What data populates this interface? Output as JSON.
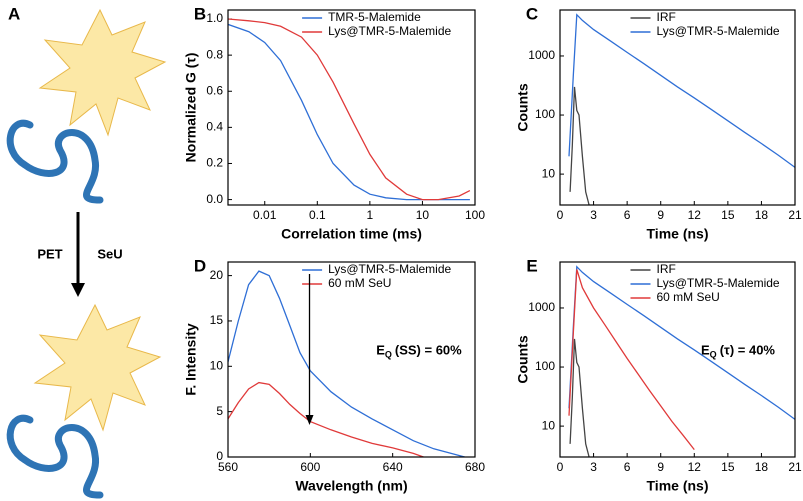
{
  "panel_a": {
    "label": "A",
    "arrow_left": "PET",
    "arrow_right": "SeU"
  },
  "chart_data": [
    {
      "type": "line",
      "panel": "B",
      "xlabel": "Correlation time (ms)",
      "ylabel": "Normalized G (τ)",
      "xscale": "log",
      "xlim": [
        0.002,
        100
      ],
      "xticks": [
        0.01,
        0.1,
        1,
        10,
        100
      ],
      "ylim": [
        -0.03,
        1.05
      ],
      "yticks": [
        {
          "value": 0,
          "label": "0.0"
        },
        0.2,
        0.4,
        0.6,
        0.8,
        {
          "value": 1,
          "label": "1.0"
        }
      ],
      "legend": "upper right",
      "series": [
        {
          "name": "TMR-5-Malemide",
          "color": "#2f6fd6",
          "x": [
            0.002,
            0.005,
            0.01,
            0.02,
            0.05,
            0.1,
            0.2,
            0.5,
            1,
            2,
            5,
            10,
            20,
            50,
            80
          ],
          "values": [
            0.97,
            0.93,
            0.87,
            0.77,
            0.55,
            0.36,
            0.2,
            0.08,
            0.03,
            0.01,
            0,
            0,
            0,
            0,
            0
          ]
        },
        {
          "name": "Lys@TMR-5-Malemide",
          "color": "#e03a3a",
          "x": [
            0.002,
            0.005,
            0.01,
            0.02,
            0.05,
            0.1,
            0.2,
            0.5,
            1,
            2,
            5,
            10,
            20,
            50,
            80
          ],
          "values": [
            1,
            0.99,
            0.98,
            0.96,
            0.9,
            0.8,
            0.65,
            0.42,
            0.25,
            0.12,
            0.03,
            0,
            0,
            0.02,
            0.05
          ]
        }
      ]
    },
    {
      "type": "line",
      "panel": "C",
      "xlabel": "Time (ns)",
      "ylabel": "Counts",
      "yscale": "log",
      "xlim": [
        0,
        21
      ],
      "xticks": [
        0,
        3,
        6,
        9,
        12,
        15,
        18,
        21
      ],
      "ylim": [
        3,
        6000
      ],
      "yticks": [
        10,
        100,
        1000
      ],
      "legend": "upper right",
      "series": [
        {
          "name": "IRF",
          "color": "#444444",
          "x": [
            0.9,
            1.1,
            1.3,
            1.5,
            1.7,
            2.0,
            2.3,
            2.6
          ],
          "values": [
            5,
            30,
            300,
            120,
            100,
            20,
            5,
            3
          ]
        },
        {
          "name": "Lys@TMR-5-Malemide",
          "color": "#2f6fd6",
          "x": [
            0.8,
            1.2,
            1.5,
            2,
            3,
            4.5,
            6,
            7.5,
            9,
            10.5,
            12,
            13.5,
            15,
            16.5,
            18,
            19.5,
            21
          ],
          "values": [
            20,
            500,
            5000,
            4000,
            2800,
            1800,
            1150,
            740,
            470,
            300,
            195,
            125,
            80,
            51,
            33,
            21,
            13
          ]
        }
      ]
    },
    {
      "type": "line",
      "panel": "D",
      "xlabel": "Wavelength (nm)",
      "ylabel": "F. Intensity",
      "xlim": [
        560,
        680
      ],
      "xticks": [
        560,
        600,
        640,
        680
      ],
      "ylim": [
        0,
        21.5
      ],
      "yticks": [
        0,
        5,
        10,
        15,
        20
      ],
      "legend": "upper right",
      "annotation": {
        "main": "E",
        "sub": "Q",
        "rest": "(SS) = 60%"
      },
      "series": [
        {
          "name": "Lys@TMR-5-Malemide",
          "color": "#2f6fd6",
          "x": [
            560,
            565,
            570,
            575,
            580,
            585,
            590,
            595,
            600,
            610,
            620,
            630,
            640,
            650,
            660,
            670,
            675
          ],
          "values": [
            10.5,
            15,
            19,
            20.5,
            20,
            17.5,
            14.5,
            11.5,
            9.5,
            7.2,
            5.5,
            4.2,
            3,
            1.8,
            0.9,
            0.3,
            0
          ]
        },
        {
          "name": "60 mM SeU",
          "color": "#e03a3a",
          "x": [
            560,
            565,
            570,
            575,
            580,
            585,
            590,
            595,
            600,
            610,
            620,
            630,
            640,
            650,
            655
          ],
          "values": [
            4.2,
            6,
            7.5,
            8.2,
            8,
            7,
            5.8,
            4.8,
            3.9,
            3,
            2.2,
            1.5,
            1,
            0.4,
            0
          ]
        }
      ]
    },
    {
      "type": "line",
      "panel": "E",
      "xlabel": "Time (ns)",
      "ylabel": "Counts",
      "yscale": "log",
      "xlim": [
        0,
        21
      ],
      "xticks": [
        0,
        3,
        6,
        9,
        12,
        15,
        18,
        21
      ],
      "ylim": [
        3,
        6000
      ],
      "yticks": [
        10,
        100,
        1000
      ],
      "legend": "upper right",
      "annotation": {
        "main": "E",
        "sub": "Q",
        "rest": "(τ) = 40%"
      },
      "series": [
        {
          "name": "IRF",
          "color": "#444444",
          "x": [
            0.9,
            1.1,
            1.3,
            1.5,
            1.7,
            2.0,
            2.3,
            2.6
          ],
          "values": [
            5,
            30,
            300,
            120,
            100,
            20,
            5,
            3
          ]
        },
        {
          "name": "Lys@TMR-5-Malemide",
          "color": "#2f6fd6",
          "x": [
            0.8,
            1.2,
            1.5,
            2,
            3,
            4.5,
            6,
            7.5,
            9,
            10.5,
            12,
            13.5,
            15,
            16.5,
            18,
            19.5,
            21
          ],
          "values": [
            20,
            500,
            5000,
            4000,
            2800,
            1800,
            1150,
            740,
            470,
            300,
            195,
            125,
            80,
            51,
            33,
            21,
            13
          ]
        },
        {
          "name": "60 mM SeU",
          "color": "#e03a3a",
          "x": [
            0.8,
            1.2,
            1.5,
            2,
            3,
            4,
            5,
            6,
            7,
            8,
            9,
            10,
            11,
            12
          ],
          "values": [
            15,
            400,
            4500,
            2200,
            1000,
            520,
            270,
            140,
            75,
            40,
            22,
            12,
            7,
            4
          ]
        }
      ]
    }
  ]
}
